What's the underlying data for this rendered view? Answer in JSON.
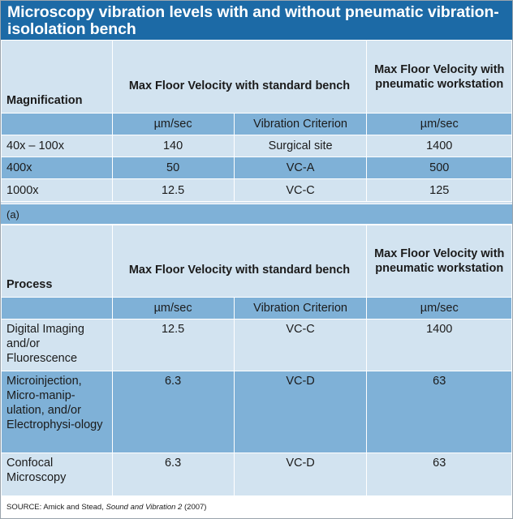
{
  "title": "Microscopy vibration levels with and without pneumatic vibration-isololation bench",
  "table_a": {
    "headers": [
      "Magnification",
      "Max Floor Velocity with standard bench",
      "Max Floor Velocity with pneumatic workstation"
    ],
    "units": [
      "",
      "µm/sec",
      "Vibration Criterion",
      "µm/sec"
    ],
    "rows": [
      [
        "40x – 100x",
        "140",
        "Surgical site",
        "1400"
      ],
      [
        "400x",
        "50",
        "VC-A",
        "500"
      ],
      [
        "1000x",
        "12.5",
        "VC-C",
        "125"
      ]
    ]
  },
  "caption": "(a)",
  "table_b": {
    "headers": [
      "Process",
      "Max Floor Velocity with standard bench",
      "Max Floor Velocity with pneumatic workstation"
    ],
    "units": [
      "",
      "µm/sec",
      "Vibration Criterion",
      "µm/sec"
    ],
    "rows": [
      [
        "Digital Imaging and/or Fluorescence",
        "12.5",
        "VC-C",
        "1400"
      ],
      [
        "Microinjection, Micro-manip-ulation, and/or Electrophysi-ology",
        "6.3",
        "VC-D",
        "63"
      ],
      [
        "Confocal Microscopy",
        "6.3",
        "VC-D",
        "63"
      ]
    ]
  },
  "source": {
    "prefix": "SOURCE: Amick and Stead, ",
    "italic": "Sound and Vibration 2",
    "suffix": " (2007)"
  }
}
